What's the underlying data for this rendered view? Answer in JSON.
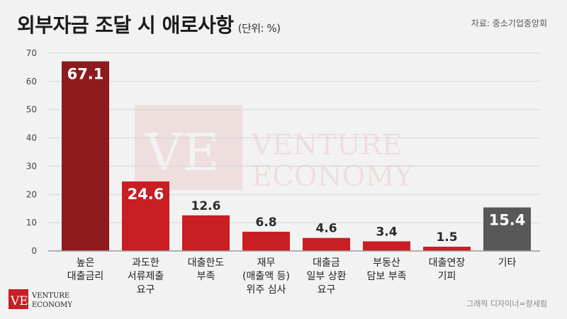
{
  "header": {
    "title": "외부자금 조달 시 애로사항",
    "unit": "(단위: %)",
    "source": "자료: 중소기업중앙회"
  },
  "footer": {
    "credit": "그래픽 디자이너=장세림"
  },
  "brand": {
    "logo_line1": "VENTURE",
    "logo_line2": "ECONOMY",
    "watermark_line1": "VENTURE",
    "watermark_line2": "ECONOMY"
  },
  "colors": {
    "bar_highlight": "#8e1a1e",
    "bar_main": "#c81e24",
    "bar_other": "#585858",
    "axis": "#999999",
    "grid": "#d6d6d6"
  },
  "chart_data": {
    "type": "bar",
    "categories": [
      [
        "높은",
        "대출금리"
      ],
      [
        "과도한",
        "서류제출",
        "요구"
      ],
      [
        "대출한도",
        "부족"
      ],
      [
        "재무",
        "(매출액 등)",
        "위주 심사"
      ],
      [
        "대출금",
        "일부 상환",
        "요구"
      ],
      [
        "부동산",
        "담보 부족"
      ],
      [
        "대출연장",
        "기피"
      ],
      [
        "기타"
      ]
    ],
    "values": [
      67.1,
      24.6,
      12.6,
      6.8,
      4.6,
      3.4,
      1.5,
      15.4
    ],
    "value_labels": [
      "67.1",
      "24.6",
      "12.6",
      "6.8",
      "4.6",
      "3.4",
      "1.5",
      "15.4"
    ],
    "yticks": [
      "0",
      "10",
      "20",
      "30",
      "40",
      "50",
      "60",
      "70"
    ],
    "ylim": [
      0,
      70
    ],
    "grid": true,
    "legend": "none"
  }
}
